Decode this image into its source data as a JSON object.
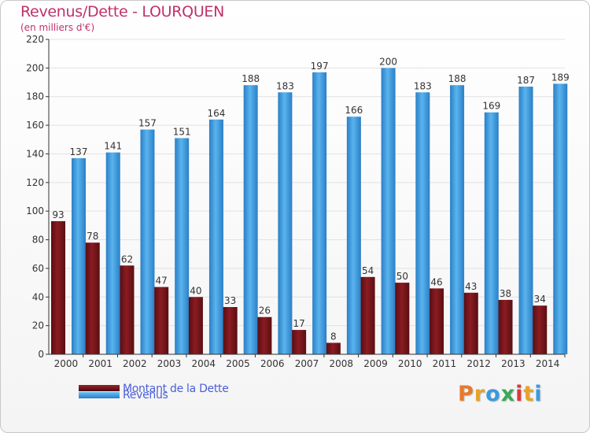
{
  "header": {
    "title": "Revenus/Dette - LOURQUEN",
    "subtitle": "(en milliers d'€)"
  },
  "legend": {
    "debt_label": "Montant de la Dette",
    "revenue_label": "Revenus"
  },
  "logo": {
    "text": "Proxiti"
  },
  "colors": {
    "debt": "#7a1418",
    "revenue": "#3a9ae0",
    "title": "#c0306a",
    "legend_text": "#4a5fd8"
  },
  "chart_data": {
    "type": "bar",
    "title": "Revenus/Dette - LOURQUEN",
    "subtitle": "(en milliers d'€)",
    "categories": [
      "2000",
      "2001",
      "2002",
      "2003",
      "2004",
      "2005",
      "2006",
      "2007",
      "2008",
      "2009",
      "2010",
      "2011",
      "2012",
      "2013",
      "2014"
    ],
    "series": [
      {
        "name": "Montant de la Dette",
        "values": [
          93,
          78,
          62,
          47,
          40,
          33,
          26,
          17,
          8,
          54,
          50,
          46,
          43,
          38,
          34
        ]
      },
      {
        "name": "Revenus",
        "values": [
          137,
          141,
          157,
          151,
          164,
          188,
          183,
          197,
          166,
          200,
          183,
          188,
          169,
          187,
          189
        ]
      }
    ],
    "ylim": [
      0,
      220
    ],
    "yticks": [
      0,
      20,
      40,
      60,
      80,
      100,
      120,
      140,
      160,
      180,
      200,
      220
    ],
    "grid": true,
    "legend_position": "bottom-left"
  }
}
